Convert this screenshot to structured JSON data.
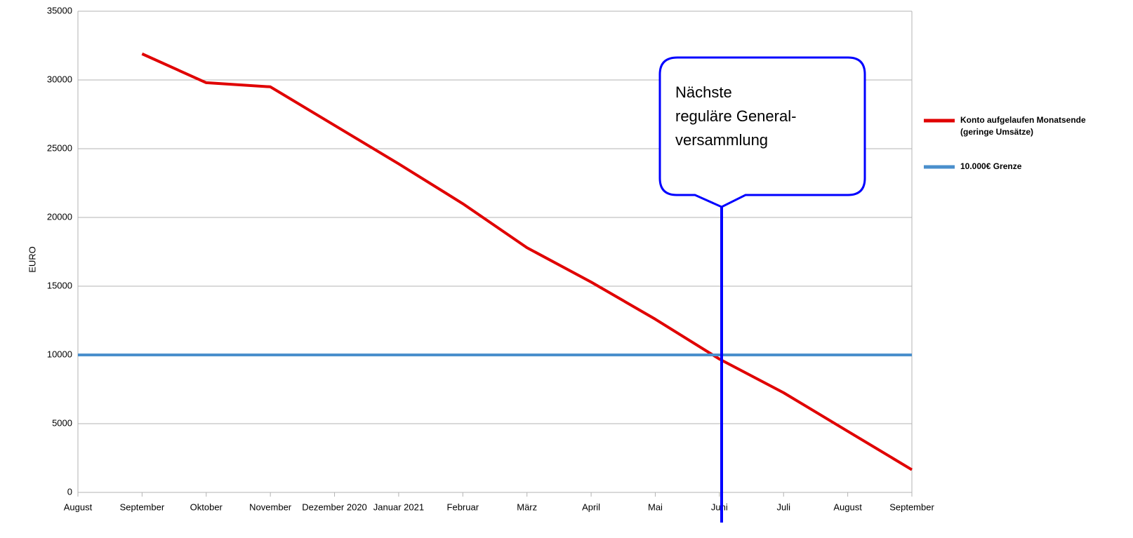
{
  "chart_data": {
    "type": "line",
    "y_label": "EURO",
    "categories": [
      "August",
      "September",
      "Oktober",
      "November",
      "Dezember 2020",
      "Januar 2021",
      "Februar",
      "März",
      "April",
      "Mai",
      "Juni",
      "Juli",
      "August",
      "September"
    ],
    "series": [
      {
        "name": "Konto aufgelaufen Monatsende",
        "name_line2": "(geringe Umsätze)",
        "color": "#e00000",
        "values": [
          null,
          31900,
          29800,
          29500,
          26700,
          23900,
          21000,
          17800,
          15300,
          12600,
          9700,
          7250,
          4450,
          1650
        ]
      },
      {
        "name": "10.000€ Grenze",
        "color": "#4a8fcc",
        "values": [
          10000,
          10000,
          10000,
          10000,
          10000,
          10000,
          10000,
          10000,
          10000,
          10000,
          10000,
          10000,
          10000,
          10000
        ]
      }
    ],
    "ylim": [
      0,
      35000
    ],
    "yticks": [
      0,
      5000,
      10000,
      15000,
      20000,
      25000,
      30000,
      35000
    ],
    "grid": true,
    "legend": "right",
    "annotation": [
      "Nächste",
      "reguläre General-",
      "versammlung"
    ]
  }
}
